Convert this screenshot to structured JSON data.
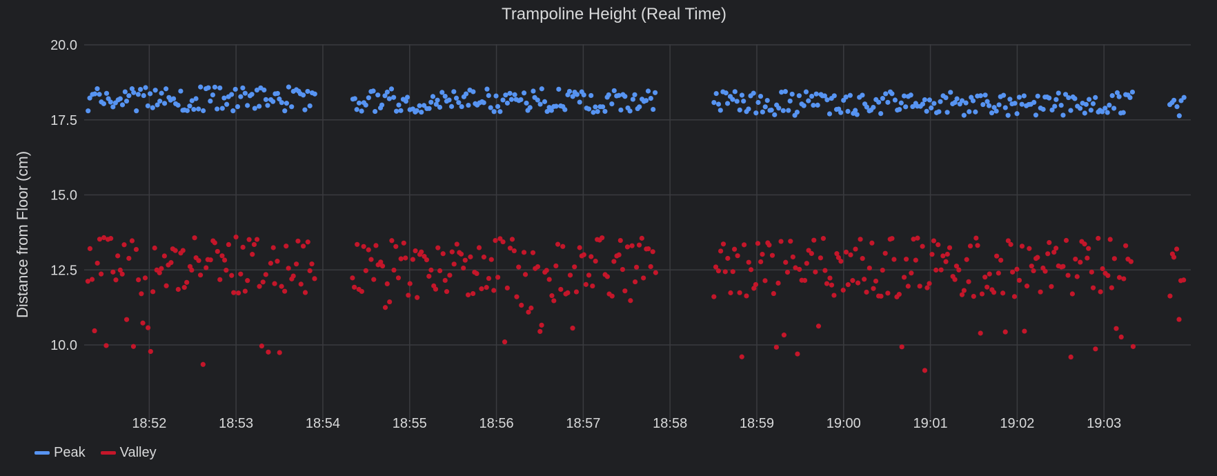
{
  "chart_data": {
    "type": "scatter",
    "title": "Trampoline Height (Real Time)",
    "ylabel": "Distance from Floor (cm)",
    "xlabel": "",
    "ylim": [
      8.0,
      20.0
    ],
    "yticks": [
      "20.0",
      "17.5",
      "15.0",
      "12.5",
      "10.0"
    ],
    "ytick_values": [
      20.0,
      17.5,
      15.0,
      12.5,
      10.0
    ],
    "xlim": [
      "18:51:15",
      "19:04:00"
    ],
    "xticks": [
      "18:52",
      "18:53",
      "18:54",
      "18:55",
      "18:56",
      "18:57",
      "18:58",
      "18:59",
      "19:00",
      "19:01",
      "19:02",
      "19:03"
    ],
    "grid": true,
    "legend_position": "bottom-left",
    "segments": [
      {
        "start": "18:51:17",
        "end": "18:53:55",
        "peak_mean": 18.2,
        "valley_mean": 12.7,
        "valley_min": 9.35
      },
      {
        "start": "18:54:20",
        "end": "18:57:50",
        "peak_mean": 18.15,
        "valley_mean": 12.6,
        "valley_min": 10.1
      },
      {
        "start": "18:58:30",
        "end": "19:03:20",
        "peak_mean": 18.05,
        "valley_mean": 12.6,
        "valley_min": 9.15
      },
      {
        "start": "19:03:45",
        "end": "19:03:55",
        "peak_mean": 18.0,
        "valley_mean": 12.3,
        "valley_min": 10.85
      }
    ],
    "series": [
      {
        "name": "Peak",
        "color": "#5794f2"
      },
      {
        "name": "Valley",
        "color": "#c4162a"
      }
    ]
  },
  "legend": {
    "items": [
      "Peak",
      "Valley"
    ]
  }
}
